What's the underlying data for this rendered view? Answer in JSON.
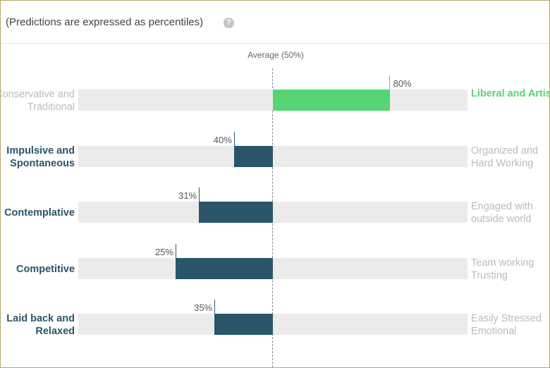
{
  "header": {
    "text": "(Predictions are expressed as percentiles)",
    "help_icon": "question-circle-icon"
  },
  "colors": {
    "above_average": "#57d473",
    "below_average": "#2a556b",
    "track": "#ebebeb"
  },
  "chart_data": {
    "type": "bar",
    "average_label": "Average (50%)",
    "average": 50,
    "xlim": [
      0,
      100
    ],
    "traits": [
      {
        "left": [
          "Conservative and",
          "Traditional"
        ],
        "right": [
          "Liberal and Artistic"
        ],
        "value": 80,
        "value_label": "80%",
        "highlight": "right"
      },
      {
        "left": [
          "Impulsive and",
          "Spontaneous"
        ],
        "right": [
          "Organized and",
          "Hard Working"
        ],
        "value": 40,
        "value_label": "40%",
        "highlight": "left"
      },
      {
        "left": [
          "Contemplative"
        ],
        "right": [
          "Engaged with",
          "outside world"
        ],
        "value": 31,
        "value_label": "31%",
        "highlight": "left"
      },
      {
        "left": [
          "Competitive"
        ],
        "right": [
          "Team working",
          "Trusting"
        ],
        "value": 25,
        "value_label": "25%",
        "highlight": "left"
      },
      {
        "left": [
          "Laid back and",
          "Relaxed"
        ],
        "right": [
          "Easily Stressed",
          "Emotional"
        ],
        "value": 35,
        "value_label": "35%",
        "highlight": "left"
      }
    ]
  }
}
